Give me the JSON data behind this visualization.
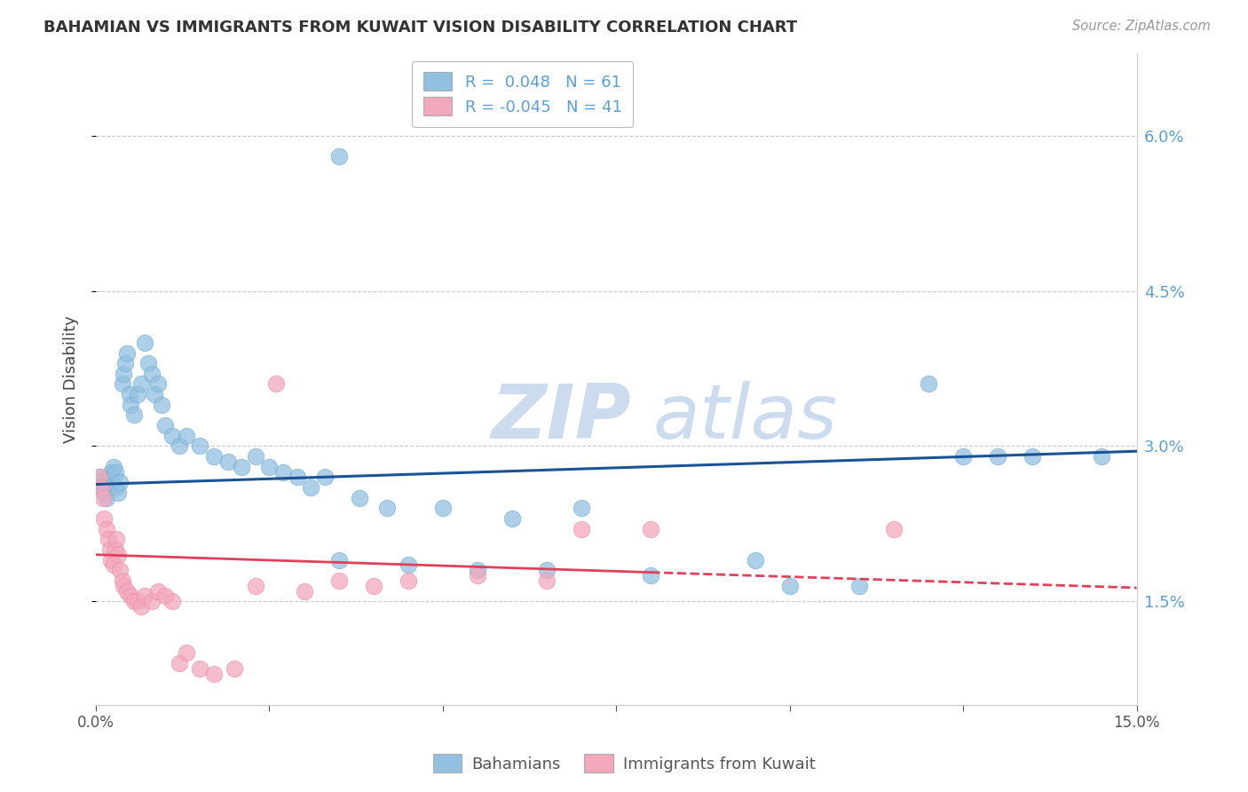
{
  "title": "BAHAMIAN VS IMMIGRANTS FROM KUWAIT VISION DISABILITY CORRELATION CHART",
  "source": "Source: ZipAtlas.com",
  "ylabel": "Vision Disability",
  "x_min": 0.0,
  "x_max": 15.0,
  "y_min": 0.5,
  "y_max": 6.8,
  "y_ticks": [
    1.5,
    3.0,
    4.5,
    6.0
  ],
  "legend1_r": " 0.048",
  "legend1_n": "61",
  "legend2_r": "-0.045",
  "legend2_n": "41",
  "blue_color": "#92c0e0",
  "pink_color": "#f4a8bc",
  "blue_edge_color": "#6aaad4",
  "pink_edge_color": "#e88aa8",
  "blue_line_color": "#1a5296",
  "pink_line_color": "#e0405a",
  "watermark_zip": "ZIP",
  "watermark_atlas": "atlas",
  "blue_x": [
    0.05,
    0.08,
    0.1,
    0.12,
    0.15,
    0.18,
    0.2,
    0.22,
    0.25,
    0.28,
    0.3,
    0.32,
    0.35,
    0.38,
    0.4,
    0.42,
    0.45,
    0.48,
    0.5,
    0.55,
    0.6,
    0.65,
    0.7,
    0.75,
    0.8,
    0.85,
    0.9,
    0.95,
    1.0,
    1.1,
    1.2,
    1.3,
    1.5,
    1.7,
    1.9,
    2.1,
    2.3,
    2.5,
    2.7,
    2.9,
    3.1,
    3.3,
    3.5,
    3.8,
    4.2,
    4.5,
    5.0,
    5.5,
    6.0,
    6.5,
    7.0,
    8.0,
    9.5,
    10.0,
    11.0,
    12.0,
    12.5,
    13.0,
    13.5,
    14.5,
    3.5
  ],
  "blue_y": [
    2.7,
    2.65,
    2.6,
    2.55,
    2.5,
    2.6,
    2.7,
    2.75,
    2.8,
    2.75,
    2.6,
    2.55,
    2.65,
    3.6,
    3.7,
    3.8,
    3.9,
    3.5,
    3.4,
    3.3,
    3.5,
    3.6,
    4.0,
    3.8,
    3.7,
    3.5,
    3.6,
    3.4,
    3.2,
    3.1,
    3.0,
    3.1,
    3.0,
    2.9,
    2.85,
    2.8,
    2.9,
    2.8,
    2.75,
    2.7,
    2.6,
    2.7,
    1.9,
    2.5,
    2.4,
    1.85,
    2.4,
    1.8,
    2.3,
    1.8,
    2.4,
    1.75,
    1.9,
    1.65,
    1.65,
    3.6,
    2.9,
    2.9,
    2.9,
    2.9,
    5.8
  ],
  "pink_x": [
    0.05,
    0.08,
    0.1,
    0.12,
    0.15,
    0.18,
    0.2,
    0.22,
    0.25,
    0.28,
    0.3,
    0.32,
    0.35,
    0.38,
    0.4,
    0.45,
    0.5,
    0.55,
    0.6,
    0.65,
    0.7,
    0.8,
    0.9,
    1.0,
    1.1,
    1.2,
    1.3,
    1.5,
    1.7,
    2.0,
    2.3,
    2.6,
    3.0,
    3.5,
    4.0,
    4.5,
    5.5,
    6.5,
    7.0,
    8.0,
    11.5
  ],
  "pink_y": [
    2.7,
    2.6,
    2.5,
    2.3,
    2.2,
    2.1,
    2.0,
    1.9,
    1.85,
    2.0,
    2.1,
    1.95,
    1.8,
    1.7,
    1.65,
    1.6,
    1.55,
    1.5,
    1.5,
    1.45,
    1.55,
    1.5,
    1.6,
    1.55,
    1.5,
    0.9,
    1.0,
    0.85,
    0.8,
    0.85,
    1.65,
    3.6,
    1.6,
    1.7,
    1.65,
    1.7,
    1.75,
    1.7,
    2.2,
    2.2,
    2.2
  ],
  "blue_trend_x0": 0.0,
  "blue_trend_y0": 2.63,
  "blue_trend_x1": 15.0,
  "blue_trend_y1": 2.95,
  "pink_trend_x0": 0.0,
  "pink_trend_y0": 1.95,
  "pink_trend_x1": 15.0,
  "pink_trend_y1": 1.63,
  "pink_solid_end": 8.0
}
